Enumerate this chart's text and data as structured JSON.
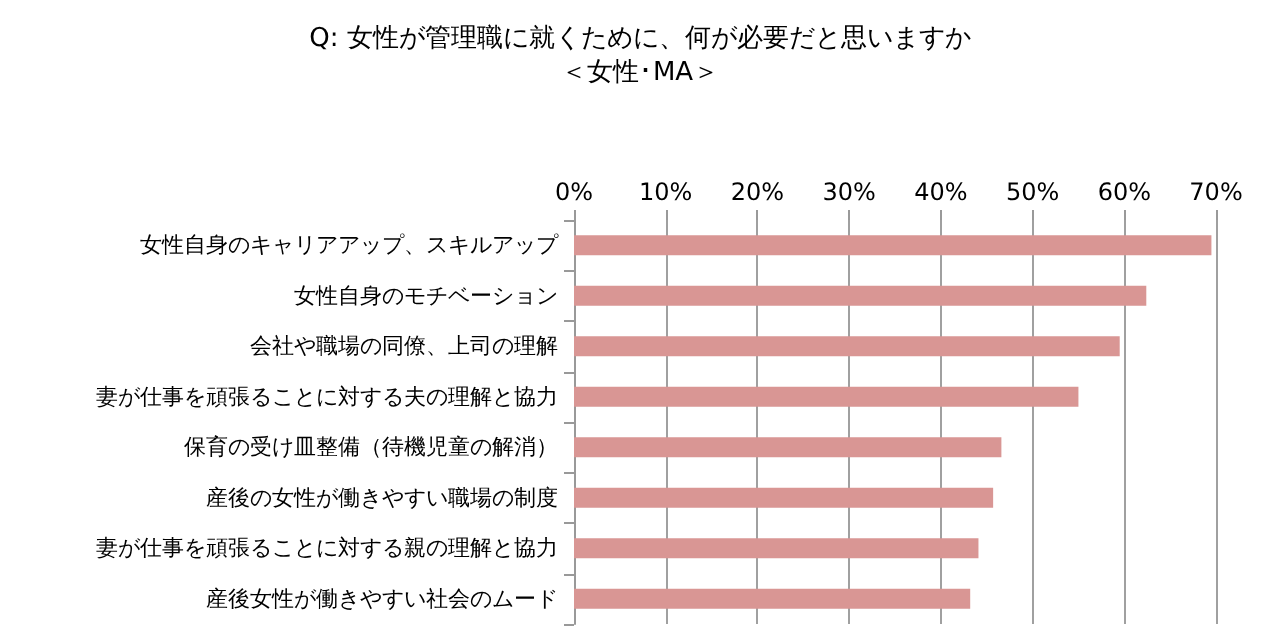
{
  "chart_data": {
    "type": "bar",
    "orientation": "horizontal",
    "title": "Q: 女性が管理職に就くために、何が必要だと思いますか",
    "subtitle": "＜女性･MA＞",
    "categories": [
      "女性自身のキャリアアップ、スキルアップ",
      "女性自身のモチベーション",
      "会社や職場の同僚、上司の理解",
      "妻が仕事を頑張ることに対する夫の理解と協力",
      "保育の受け皿整備（待機児童の解消）",
      "産後の女性が働きやすい職場の制度",
      "妻が仕事を頑張ることに対する親の理解と協力",
      "産後女性が働きやすい社会のムード"
    ],
    "values": [
      69.5,
      62.4,
      59.5,
      55.0,
      46.6,
      45.7,
      44.1,
      43.2
    ],
    "color": "#d99694",
    "xlim": [
      0,
      70
    ],
    "xticks": [
      {
        "value": 0,
        "label": "0%"
      },
      {
        "value": 10,
        "label": "10%"
      },
      {
        "value": 20,
        "label": "20%"
      },
      {
        "value": 30,
        "label": "30%"
      },
      {
        "value": 40,
        "label": "40%"
      },
      {
        "value": 50,
        "label": "50%"
      },
      {
        "value": 60,
        "label": "60%"
      },
      {
        "value": 70,
        "label": "70%"
      }
    ],
    "grid": "x"
  }
}
